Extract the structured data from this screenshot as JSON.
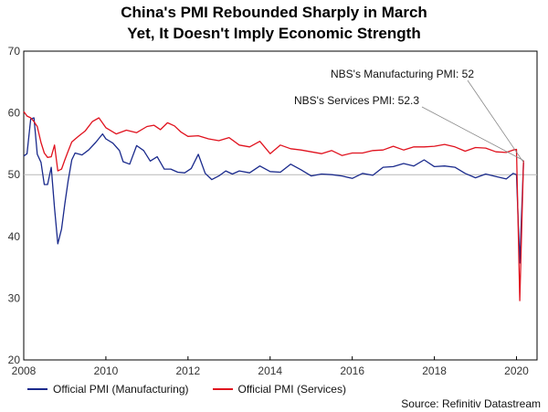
{
  "chart_data": {
    "type": "line",
    "title_line1": "China's PMI Rebounded Sharply in March",
    "title_line2": "Yet, It Doesn't Imply Economic Strength",
    "xlabel": "",
    "ylabel": "",
    "xlim": [
      2008,
      2020.5
    ],
    "ylim": [
      20,
      70
    ],
    "x_ticks": [
      2008,
      2010,
      2012,
      2014,
      2016,
      2018,
      2020
    ],
    "y_ticks": [
      20,
      30,
      40,
      50,
      60,
      70
    ],
    "reference_line": 50,
    "grid": false,
    "legend_position": "bottom-left",
    "series": [
      {
        "name": "Official PMI (Manufacturing)",
        "color": "#1a2a8c",
        "x": [
          2008.0,
          2008.08,
          2008.17,
          2008.25,
          2008.33,
          2008.42,
          2008.5,
          2008.58,
          2008.67,
          2008.75,
          2008.83,
          2008.92,
          2009.0,
          2009.08,
          2009.17,
          2009.25,
          2009.42,
          2009.58,
          2009.75,
          2009.92,
          2010.0,
          2010.17,
          2010.33,
          2010.42,
          2010.58,
          2010.75,
          2010.92,
          2011.08,
          2011.25,
          2011.42,
          2011.58,
          2011.75,
          2011.92,
          2012.08,
          2012.25,
          2012.42,
          2012.58,
          2012.75,
          2012.92,
          2013.08,
          2013.25,
          2013.5,
          2013.75,
          2014.0,
          2014.25,
          2014.5,
          2014.75,
          2015.0,
          2015.25,
          2015.5,
          2015.75,
          2016.0,
          2016.25,
          2016.5,
          2016.75,
          2017.0,
          2017.25,
          2017.5,
          2017.75,
          2018.0,
          2018.25,
          2018.5,
          2018.75,
          2019.0,
          2019.25,
          2019.5,
          2019.75,
          2019.92,
          2020.0,
          2020.08,
          2020.17
        ],
        "values": [
          53.0,
          53.4,
          59.0,
          59.2,
          53.3,
          52.0,
          48.4,
          48.4,
          51.2,
          44.6,
          38.8,
          41.2,
          45.3,
          49.0,
          52.4,
          53.5,
          53.2,
          54.0,
          55.2,
          56.6,
          55.8,
          55.1,
          53.9,
          52.1,
          51.7,
          54.7,
          53.9,
          52.2,
          52.9,
          50.9,
          50.9,
          50.4,
          50.3,
          51.0,
          53.3,
          50.2,
          49.2,
          49.8,
          50.6,
          50.1,
          50.6,
          50.3,
          51.4,
          50.5,
          50.4,
          51.7,
          50.8,
          49.8,
          50.1,
          50.0,
          49.8,
          49.4,
          50.2,
          49.9,
          51.2,
          51.3,
          51.8,
          51.4,
          52.4,
          51.3,
          51.4,
          51.2,
          50.2,
          49.5,
          50.1,
          49.7,
          49.3,
          50.2,
          50.0,
          35.7,
          52.0
        ]
      },
      {
        "name": "Official PMI (Services)",
        "color": "#e0121e",
        "x": [
          2008.0,
          2008.08,
          2008.17,
          2008.25,
          2008.33,
          2008.42,
          2008.5,
          2008.58,
          2008.67,
          2008.75,
          2008.83,
          2008.92,
          2009.0,
          2009.08,
          2009.17,
          2009.33,
          2009.5,
          2009.67,
          2009.83,
          2010.0,
          2010.25,
          2010.5,
          2010.75,
          2011.0,
          2011.17,
          2011.33,
          2011.5,
          2011.67,
          2011.83,
          2012.0,
          2012.25,
          2012.5,
          2012.75,
          2013.0,
          2013.25,
          2013.5,
          2013.75,
          2014.0,
          2014.25,
          2014.5,
          2014.75,
          2015.0,
          2015.25,
          2015.5,
          2015.75,
          2016.0,
          2016.25,
          2016.5,
          2016.75,
          2017.0,
          2017.25,
          2017.5,
          2017.75,
          2018.0,
          2018.25,
          2018.5,
          2018.75,
          2019.0,
          2019.25,
          2019.5,
          2019.75,
          2019.92,
          2020.0,
          2020.08,
          2020.17
        ],
        "values": [
          60.2,
          59.5,
          59.2,
          58.6,
          57.8,
          55.2,
          53.5,
          52.8,
          52.9,
          54.8,
          50.6,
          50.9,
          52.4,
          53.8,
          55.3,
          56.2,
          57.1,
          58.6,
          59.2,
          57.6,
          56.6,
          57.2,
          56.8,
          57.8,
          58.0,
          57.3,
          58.4,
          57.9,
          56.9,
          56.2,
          56.3,
          55.8,
          55.5,
          56.0,
          54.8,
          54.5,
          55.4,
          53.4,
          54.8,
          54.2,
          54.0,
          53.7,
          53.4,
          53.9,
          53.1,
          53.5,
          53.5,
          53.9,
          54.0,
          54.6,
          54.0,
          54.5,
          54.5,
          54.6,
          54.9,
          54.5,
          53.8,
          54.4,
          54.3,
          53.7,
          53.6,
          54.0,
          54.1,
          29.6,
          52.3
        ]
      }
    ],
    "annotations": [
      {
        "text": "NBS's Manufacturing PMI: 52",
        "x": 2020.17,
        "y": 52.0,
        "color": "#888888"
      },
      {
        "text": "NBS's Services PMI: 52.3",
        "x": 2020.17,
        "y": 52.3,
        "color": "#888888"
      }
    ],
    "source": "Source: Refinitiv Datastream"
  }
}
